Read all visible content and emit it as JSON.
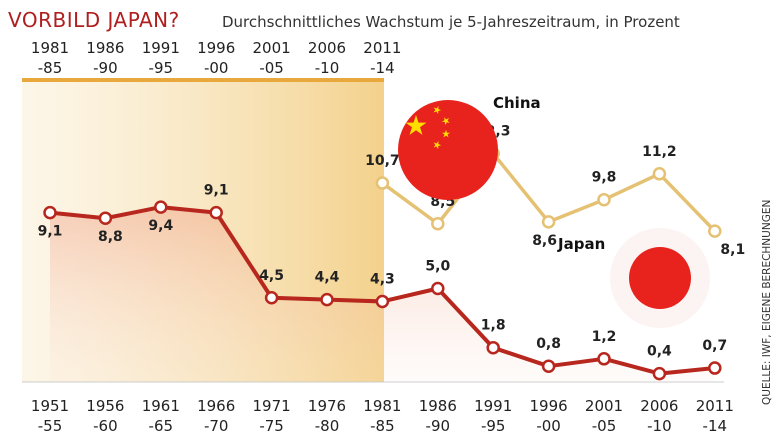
{
  "header": {
    "title": "VORBILD JAPAN?",
    "subtitle": "Durchschnittliches Wachstum je 5-Jahreszeitraum, in Prozent"
  },
  "source": "QUELLE: IWF, EIGENE BERECHNUNGEN",
  "colors": {
    "japan_line": "#b8271e",
    "china_line": "#e5c173",
    "china_band": "#f5d79c",
    "japan_area": "#f3cbb9",
    "flag_red": "#e8231d",
    "flag_yellow": "#ffde00"
  },
  "chart_data": {
    "type": "line",
    "title": "VORBILD JAPAN?",
    "subtitle": "Durchschnittliches Wachstum je 5-Jahreszeitraum, in Prozent",
    "xlabel": "",
    "ylabel": "",
    "ylim": [
      0,
      13
    ],
    "grid": false,
    "series": [
      {
        "name": "Japan",
        "categories": [
          "1951\n-55",
          "1956\n-60",
          "1961\n-65",
          "1966\n-70",
          "1971\n-75",
          "1976\n-80",
          "1981\n-85",
          "1986\n-90",
          "1991\n-95",
          "1996\n-00",
          "2001\n-05",
          "2006\n-10",
          "2011\n-14"
        ],
        "values": [
          9.1,
          8.8,
          9.4,
          9.1,
          4.5,
          4.4,
          4.3,
          5.0,
          1.8,
          0.8,
          1.2,
          0.4,
          0.7
        ],
        "labels": [
          "9,1",
          "8,8",
          "9,4",
          "9,1",
          "4,5",
          "4,4",
          "4,3",
          "5,0",
          "1,8",
          "0,8",
          "1,2",
          "0,4",
          "0,7"
        ]
      },
      {
        "name": "China",
        "categories": [
          "1981\n-85",
          "1986\n-90",
          "1991\n-95",
          "1996\n-00",
          "2001\n-05",
          "2006\n-10",
          "2011\n-14"
        ],
        "values": [
          10.7,
          8.5,
          12.3,
          8.6,
          9.8,
          11.2,
          8.1
        ],
        "labels": [
          "10,7",
          "8,5",
          "12,3",
          "8,6",
          "9,8",
          "11,2",
          "8,1"
        ]
      }
    ]
  }
}
